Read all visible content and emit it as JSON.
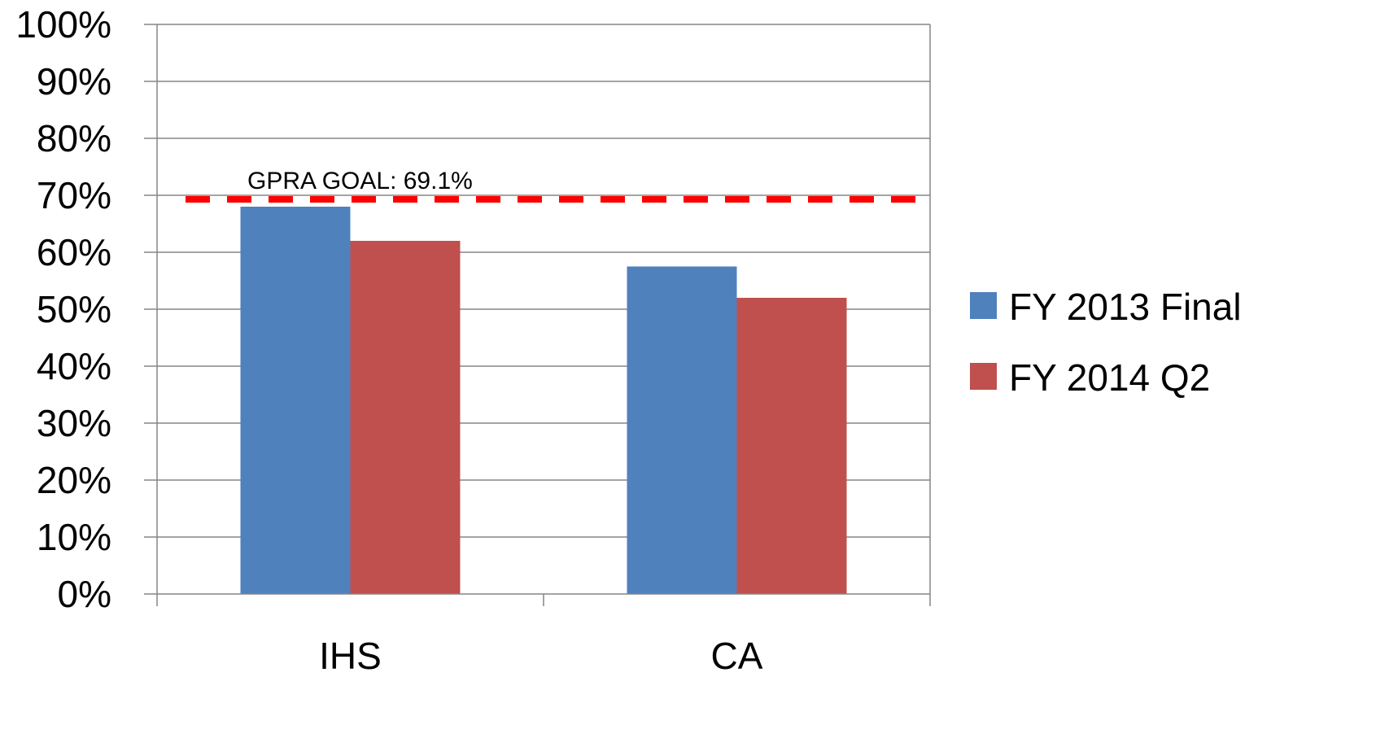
{
  "chart_data": {
    "type": "bar",
    "categories": [
      "IHS",
      "CA"
    ],
    "series": [
      {
        "name": "FY 2013 Final",
        "values": [
          0.68,
          0.575
        ],
        "color": "#4F81BD"
      },
      {
        "name": "FY 2014 Q2",
        "values": [
          0.62,
          0.52
        ],
        "color": "#C0504D"
      }
    ],
    "ylim": [
      0,
      1
    ],
    "yticks": [
      0,
      0.1,
      0.2,
      0.3,
      0.4,
      0.5,
      0.6,
      0.7,
      0.8,
      0.9,
      1.0
    ],
    "ytick_labels": [
      "0%",
      "10%",
      "20%",
      "30%",
      "40%",
      "50%",
      "60%",
      "70%",
      "80%",
      "90%",
      "100%"
    ],
    "grid": true,
    "legend_position": "right",
    "reference_line": {
      "value": 0.691,
      "label": "GPRA GOAL: 69.1%",
      "color": "#FF0000",
      "style": "dashed"
    },
    "gridline_color": "#868686",
    "axis_color": "#868686"
  }
}
